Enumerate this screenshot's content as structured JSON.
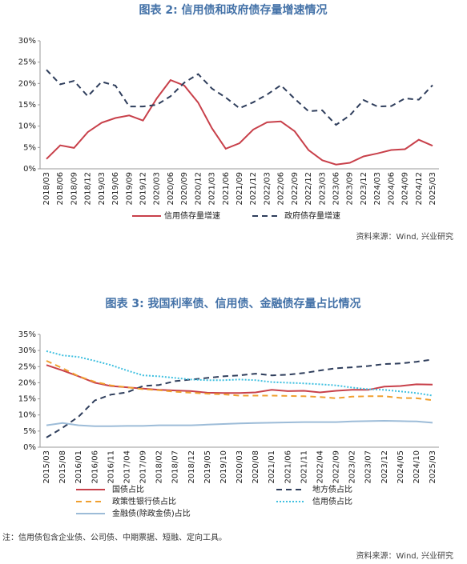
{
  "chart_data": [
    {
      "type": "line",
      "title": "图表 2:  信用债和政府债存量增速情况",
      "source": "资料来源：Wind, 兴业研究",
      "categories": [
        "2018/03",
        "2018/06",
        "2018/09",
        "2018/12",
        "2019/03",
        "2019/06",
        "2019/09",
        "2019/12",
        "2020/03",
        "2020/06",
        "2020/09",
        "2020/12",
        "2021/03",
        "2021/06",
        "2021/09",
        "2021/12",
        "2022/03",
        "2022/06",
        "2022/09",
        "2022/12",
        "2023/03",
        "2023/06",
        "2023/09",
        "2023/12",
        "2024/03",
        "2024/06",
        "2024/09",
        "2024/12",
        "2025/03"
      ],
      "series": [
        {
          "name": "信用债存量增速",
          "color": "#c8404a",
          "dash": "solid",
          "values": [
            2.3,
            5.5,
            4.9,
            8.6,
            10.8,
            11.9,
            12.5,
            11.3,
            16.5,
            20.8,
            19.5,
            15.5,
            9.5,
            4.7,
            6.0,
            9.2,
            10.9,
            11.1,
            8.8,
            4.4,
            2.0,
            1.0,
            1.4,
            2.9,
            3.6,
            4.4,
            4.6,
            6.8,
            5.4
          ]
        },
        {
          "name": "政府债存量增速",
          "color": "#2f3e5c",
          "dash": "dashed",
          "values": [
            23.2,
            19.8,
            20.6,
            17.0,
            20.4,
            19.5,
            14.6,
            14.6,
            15.0,
            17.0,
            20.2,
            22.2,
            18.8,
            16.7,
            14.2,
            15.6,
            17.4,
            19.6,
            16.4,
            13.5,
            13.7,
            10.3,
            12.5,
            16.1,
            14.6,
            14.7,
            16.5,
            16.2,
            19.6
          ]
        }
      ],
      "ylim": [
        0,
        30
      ],
      "yticks": [
        {
          "value": 0,
          "label": "0%"
        },
        {
          "value": 5,
          "label": "5%"
        },
        {
          "value": 10,
          "label": "10%"
        },
        {
          "value": 15,
          "label": "15%"
        },
        {
          "value": 20,
          "label": "20%"
        },
        {
          "value": 25,
          "label": "25%"
        },
        {
          "value": 30,
          "label": "30%"
        }
      ]
    },
    {
      "type": "line",
      "title": "图表 3:  我国利率债、信用债、金融债存量占比情况",
      "note": "注：信用债包含企业债、公司债、中期票据、短融、定向工具。",
      "source": "资料来源：Wind, 兴业研究",
      "categories": [
        "2015/03",
        "2015/08",
        "2016/01",
        "2016/06",
        "2016/11",
        "2017/04",
        "2017/09",
        "2018/02",
        "2018/07",
        "2018/12",
        "2019/05",
        "2019/10",
        "2020/03",
        "2020/08",
        "2021/01",
        "2021/06",
        "2021/11",
        "2022/04",
        "2022/09",
        "2023/02",
        "2023/07",
        "2023/12",
        "2024/05",
        "2024/10",
        "2025/03"
      ],
      "series": [
        {
          "name": "国债占比",
          "color": "#c8404a",
          "dash": "solid",
          "values": [
            25.5,
            23.8,
            22.0,
            20.0,
            19.0,
            18.6,
            18.2,
            17.8,
            17.6,
            17.4,
            16.9,
            16.8,
            16.8,
            17.0,
            17.8,
            17.4,
            17.5,
            17.0,
            17.5,
            17.8,
            17.8,
            18.8,
            19.0,
            19.5,
            19.4
          ]
        },
        {
          "name": "地方债占比",
          "color": "#2f3e5c",
          "dash": "dashed",
          "values": [
            3.0,
            6.0,
            9.5,
            14.5,
            16.3,
            17.0,
            19.0,
            19.3,
            20.5,
            21.0,
            21.5,
            22.0,
            22.3,
            22.8,
            22.3,
            22.5,
            23.0,
            23.8,
            24.5,
            24.8,
            25.2,
            25.8,
            26.0,
            26.5,
            27.2
          ]
        },
        {
          "name": "政策性银行债占比",
          "color": "#f0a030",
          "dash": "dashed",
          "values": [
            26.8,
            24.5,
            22.0,
            20.3,
            19.2,
            18.6,
            18.0,
            17.7,
            17.2,
            16.9,
            16.6,
            16.4,
            16.0,
            16.0,
            16.0,
            15.9,
            15.8,
            15.6,
            15.2,
            15.7,
            15.8,
            15.8,
            15.3,
            15.2,
            14.6
          ]
        },
        {
          "name": "信用债占比",
          "color": "#40c0e0",
          "dash": "dotted",
          "values": [
            29.8,
            28.5,
            28.0,
            26.8,
            25.5,
            23.8,
            22.3,
            22.0,
            21.5,
            21.0,
            20.8,
            20.8,
            21.0,
            20.8,
            20.2,
            20.0,
            19.8,
            19.5,
            19.2,
            18.5,
            18.0,
            17.8,
            17.3,
            16.8,
            16.0
          ]
        },
        {
          "name": "金融债(除政金债)占比",
          "color": "#9dbcd8",
          "dash": "solid",
          "values": [
            6.8,
            7.5,
            6.8,
            6.5,
            6.5,
            6.6,
            6.6,
            6.8,
            6.8,
            6.8,
            7.0,
            7.2,
            7.4,
            7.5,
            7.6,
            7.7,
            7.8,
            7.8,
            7.8,
            8.0,
            8.1,
            8.2,
            8.1,
            8.0,
            7.6
          ]
        }
      ],
      "ylim": [
        0,
        35
      ],
      "yticks": [
        {
          "value": 0,
          "label": "0%"
        },
        {
          "value": 5,
          "label": "5%"
        },
        {
          "value": 10,
          "label": "10%"
        },
        {
          "value": 15,
          "label": "15%"
        },
        {
          "value": 20,
          "label": "20%"
        },
        {
          "value": 25,
          "label": "25%"
        },
        {
          "value": 30,
          "label": "30%"
        },
        {
          "value": 35,
          "label": "35%"
        }
      ]
    }
  ]
}
